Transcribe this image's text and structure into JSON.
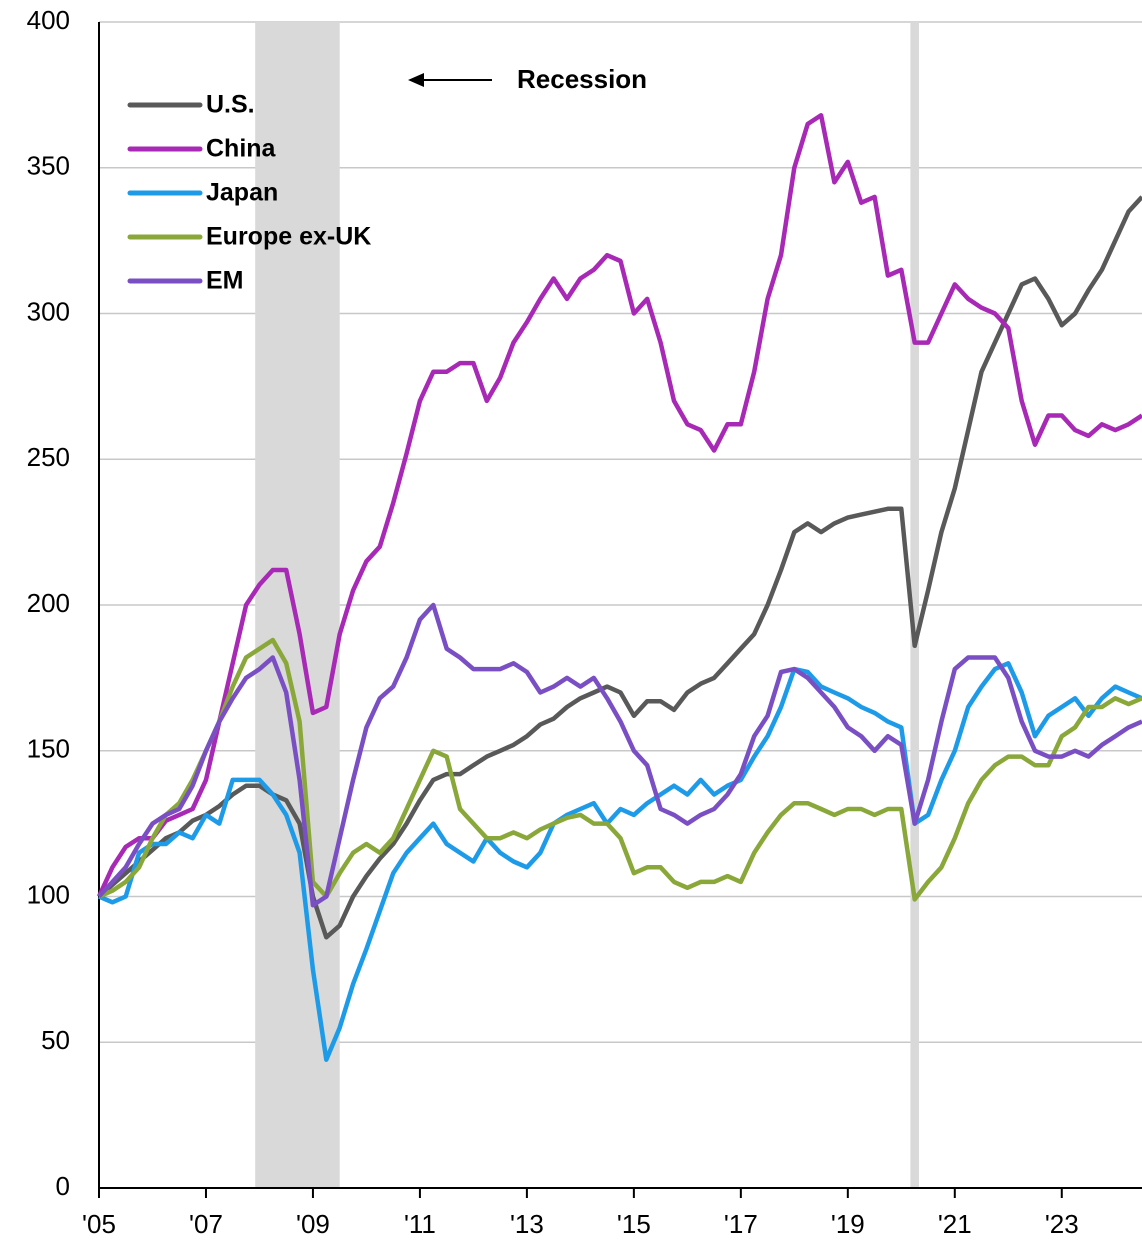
{
  "chart_data": {
    "type": "line",
    "annotation": "Recession",
    "recessions": [
      [
        2007.92,
        2009.5
      ],
      [
        2020.17,
        2020.33
      ]
    ],
    "recession_color": "#d9d9d9",
    "legend": "upper left",
    "grid": true,
    "xlim": [
      2005,
      2024.5
    ],
    "ylim": [
      0,
      400
    ],
    "yticks": [
      0,
      50,
      100,
      150,
      200,
      250,
      300,
      350,
      400
    ],
    "xticks": [
      {
        "value": 2005,
        "label": "'05"
      },
      {
        "value": 2007,
        "label": "'07"
      },
      {
        "value": 2009,
        "label": "'09"
      },
      {
        "value": 2011,
        "label": "'11"
      },
      {
        "value": 2013,
        "label": "'13"
      },
      {
        "value": 2015,
        "label": "'15"
      },
      {
        "value": 2017,
        "label": "'17"
      },
      {
        "value": 2019,
        "label": "'19"
      },
      {
        "value": 2021,
        "label": "'21"
      },
      {
        "value": 2023,
        "label": "'23"
      }
    ],
    "x": [
      2005,
      2005.25,
      2005.5,
      2005.75,
      2006,
      2006.25,
      2006.5,
      2006.75,
      2007,
      2007.25,
      2007.5,
      2007.75,
      2008,
      2008.25,
      2008.5,
      2008.75,
      2009,
      2009.25,
      2009.5,
      2009.75,
      2010,
      2010.25,
      2010.5,
      2010.75,
      2011,
      2011.25,
      2011.5,
      2011.75,
      2012,
      2012.25,
      2012.5,
      2012.75,
      2013,
      2013.25,
      2013.5,
      2013.75,
      2014,
      2014.25,
      2014.5,
      2014.75,
      2015,
      2015.25,
      2015.5,
      2015.75,
      2016,
      2016.25,
      2016.5,
      2016.75,
      2017,
      2017.25,
      2017.5,
      2017.75,
      2018,
      2018.25,
      2018.5,
      2018.75,
      2019,
      2019.25,
      2019.5,
      2019.75,
      2020,
      2020.25,
      2020.5,
      2020.75,
      2021,
      2021.25,
      2021.5,
      2021.75,
      2022,
      2022.25,
      2022.5,
      2022.75,
      2023,
      2023.25,
      2023.5,
      2023.75,
      2024,
      2024.25,
      2024.5
    ],
    "series": [
      {
        "name": "U.S.",
        "color": "#595959",
        "values": [
          100,
          104,
          108,
          112,
          116,
          120,
          122,
          126,
          128,
          131,
          135,
          138,
          138,
          135,
          133,
          125,
          100,
          86,
          90,
          100,
          107,
          113,
          118,
          125,
          133,
          140,
          142,
          142,
          145,
          148,
          150,
          152,
          155,
          159,
          161,
          165,
          168,
          170,
          172,
          170,
          162,
          167,
          167,
          164,
          170,
          173,
          175,
          180,
          185,
          190,
          200,
          212,
          225,
          228,
          225,
          228,
          230,
          231,
          232,
          233,
          233,
          186,
          205,
          225,
          240,
          260,
          280,
          290,
          300,
          310,
          312,
          305,
          296,
          300,
          308,
          315,
          325,
          335,
          340
        ]
      },
      {
        "name": "China",
        "color": "#a829b5",
        "values": [
          100,
          110,
          117,
          120,
          120,
          126,
          128,
          130,
          140,
          160,
          180,
          200,
          207,
          212,
          212,
          190,
          163,
          165,
          190,
          205,
          215,
          220,
          235,
          252,
          270,
          280,
          280,
          283,
          283,
          270,
          278,
          290,
          297,
          305,
          312,
          305,
          312,
          315,
          320,
          318,
          300,
          305,
          290,
          270,
          262,
          260,
          253,
          262,
          262,
          280,
          305,
          320,
          350,
          365,
          368,
          345,
          352,
          338,
          340,
          313,
          315,
          290,
          290,
          300,
          310,
          305,
          302,
          300,
          295,
          270,
          255,
          265,
          265,
          260,
          258,
          262,
          260,
          262,
          265
        ]
      },
      {
        "name": "Japan",
        "color": "#1e9be8",
        "values": [
          100,
          98,
          100,
          115,
          118,
          118,
          122,
          120,
          128,
          125,
          140,
          140,
          140,
          135,
          128,
          115,
          75,
          44,
          55,
          70,
          82,
          95,
          108,
          115,
          120,
          125,
          118,
          115,
          112,
          120,
          115,
          112,
          110,
          115,
          125,
          128,
          130,
          132,
          125,
          130,
          128,
          132,
          135,
          138,
          135,
          140,
          135,
          138,
          140,
          148,
          155,
          165,
          178,
          177,
          172,
          170,
          168,
          165,
          163,
          160,
          158,
          125,
          128,
          140,
          150,
          165,
          172,
          178,
          180,
          170,
          155,
          162,
          165,
          168,
          162,
          168,
          172,
          170,
          168
        ]
      },
      {
        "name": "Europe ex-UK",
        "color": "#8aa83a",
        "values": [
          100,
          102,
          105,
          110,
          120,
          128,
          132,
          140,
          150,
          160,
          172,
          182,
          185,
          188,
          180,
          160,
          105,
          100,
          108,
          115,
          118,
          115,
          120,
          130,
          140,
          150,
          148,
          130,
          125,
          120,
          120,
          122,
          120,
          123,
          125,
          127,
          128,
          125,
          125,
          120,
          108,
          110,
          110,
          105,
          103,
          105,
          105,
          107,
          105,
          115,
          122,
          128,
          132,
          132,
          130,
          128,
          130,
          130,
          128,
          130,
          130,
          99,
          105,
          110,
          120,
          132,
          140,
          145,
          148,
          148,
          145,
          145,
          155,
          158,
          165,
          165,
          168,
          166,
          168
        ]
      },
      {
        "name": "EM",
        "color": "#7a4fc4",
        "values": [
          100,
          105,
          110,
          118,
          125,
          128,
          130,
          138,
          150,
          160,
          168,
          175,
          178,
          182,
          170,
          140,
          97,
          100,
          120,
          140,
          158,
          168,
          172,
          182,
          195,
          200,
          185,
          182,
          178,
          178,
          178,
          180,
          177,
          170,
          172,
          175,
          172,
          175,
          168,
          160,
          150,
          145,
          130,
          128,
          125,
          128,
          130,
          135,
          142,
          155,
          162,
          177,
          178,
          175,
          170,
          165,
          158,
          155,
          150,
          155,
          152,
          125,
          140,
          160,
          178,
          182,
          182,
          182,
          175,
          160,
          150,
          148,
          148,
          150,
          148,
          152,
          155,
          158,
          160
        ]
      }
    ]
  }
}
